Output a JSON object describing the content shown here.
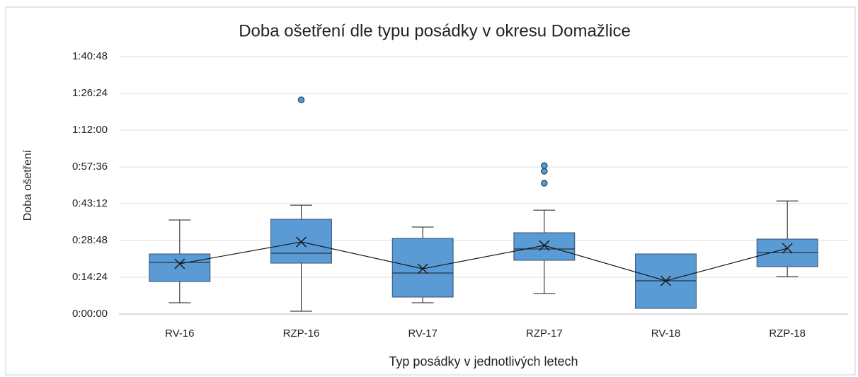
{
  "chart_data": {
    "type": "box",
    "title": "Doba ošetření dle typu posádky v okresu Domažlice",
    "x_label": "Typ posádky  v jednotlivých  letech",
    "y_label": "Doba ošetření",
    "categories": [
      "RV-16",
      "RZP-16",
      "RV-17",
      "RZP-17",
      "RV-18",
      "RZP-18"
    ],
    "color": "#5b9bd5",
    "min": [
      266,
      66,
      266,
      482,
      133,
      881
    ],
    "q1": [
      764,
      1196,
      399,
      1263,
      133,
      1113
    ],
    "median": [
      1213,
      1428,
      964,
      1528,
      781,
      1445
    ],
    "q3": [
      1412,
      2226,
      1777,
      1910,
      1412,
      1761
    ],
    "max": [
      2210,
      2557,
      2043,
      2441,
      1412,
      2657
    ],
    "mean": [
      1180,
      1694,
      1063,
      1611,
      781,
      1545
    ],
    "outliers": [
      [],
      [
        5032
      ],
      [],
      [
        3488,
        3355,
        3073
      ],
      [],
      []
    ],
    "ylim": [
      0,
      6048
    ],
    "yticks": [
      {
        "value": 0,
        "label": "0:00:00"
      },
      {
        "value": 864,
        "label": "0:14:24"
      },
      {
        "value": 1728,
        "label": "0:28:48"
      },
      {
        "value": 2592,
        "label": "0:43:12"
      },
      {
        "value": 3456,
        "label": "0:57:36"
      },
      {
        "value": 4320,
        "label": "1:12:00"
      },
      {
        "value": 5184,
        "label": "1:26:24"
      },
      {
        "value": 6048,
        "label": "1:40:48"
      }
    ],
    "grid": true
  }
}
